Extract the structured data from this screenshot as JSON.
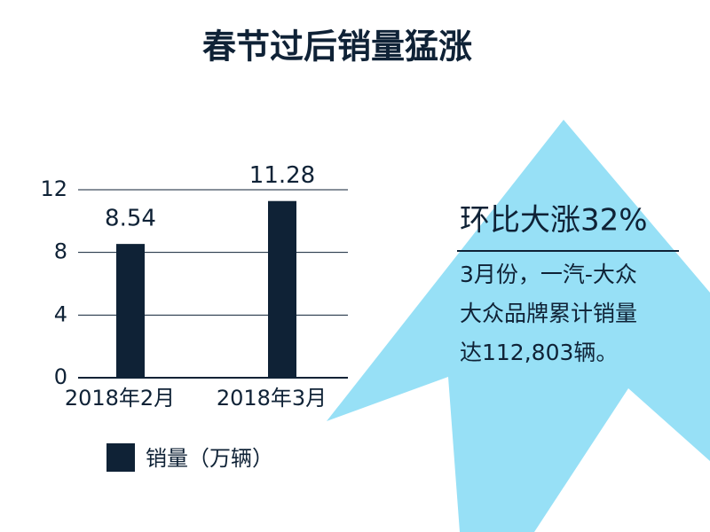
{
  "chart_data": {
    "type": "bar",
    "title": "春节过后销量猛涨",
    "categories": [
      "2018年2月",
      "2018年3月"
    ],
    "values": [
      8.54,
      11.28
    ],
    "color": "#0f2236",
    "ylim": [
      0,
      12
    ],
    "yticks": [
      0,
      4,
      8,
      12
    ],
    "grid": true,
    "legend": {
      "label": "销量（万辆）",
      "position": "bottom"
    },
    "annotations": {
      "heading": "环比大涨32%",
      "lines": [
        "3月份，一汽-大众",
        "大众品牌累计销量",
        "达112,803辆。"
      ]
    }
  }
}
